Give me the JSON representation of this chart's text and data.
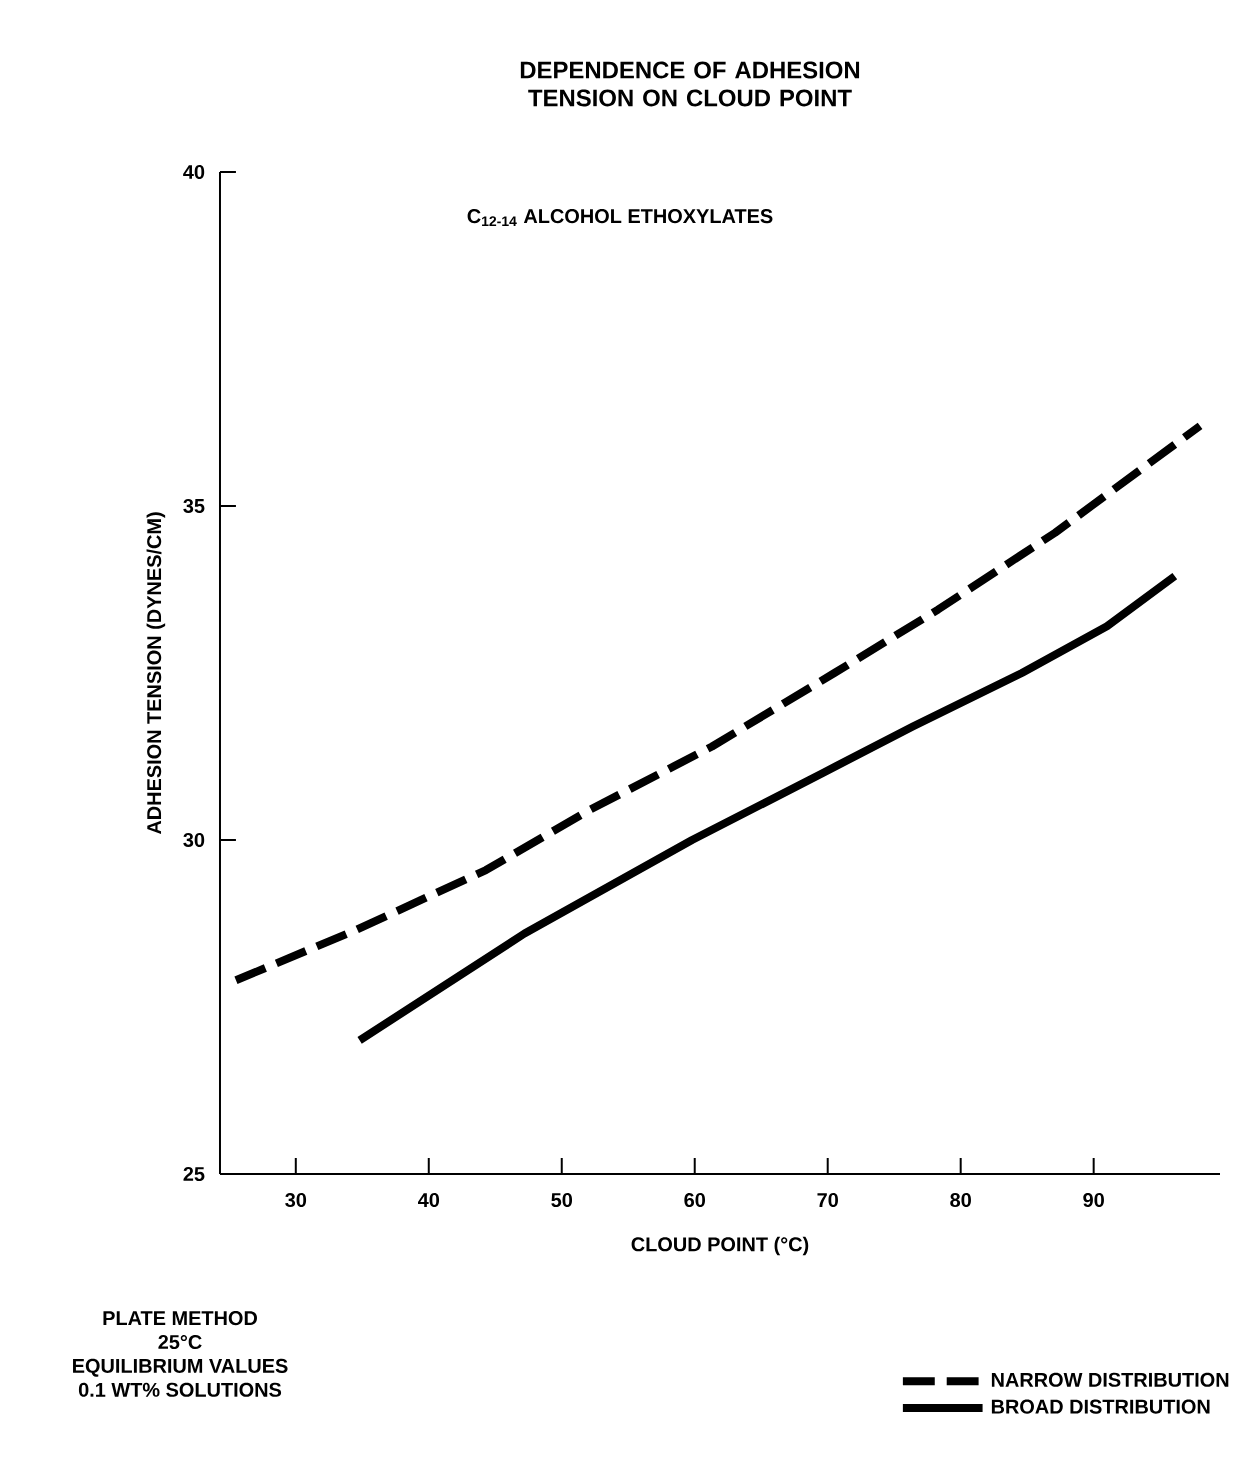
{
  "chart_data": {
    "type": "line",
    "title": "DEPENDENCE OF ADHESION TENSION ON CLOUD POINT",
    "xlabel": "CLOUD POINT (°C)",
    "ylabel": "ADHESION TENSION (DYNES/CM)",
    "annotations": [
      "C$_{12-14}$ ALCOHOL ETHOXYLATES",
      "PLATE METHOD",
      "25°C",
      "EQUILIBRIUM VALUES",
      "0.1 WT% SOLUTIONS"
    ],
    "xlim": [
      24.3,
      99.5
    ],
    "ylim": [
      25,
      40
    ],
    "xticks": [
      30,
      40,
      50,
      60,
      70,
      80,
      90
    ],
    "yticks": [
      25,
      30,
      35,
      40
    ],
    "legend": "bottom right",
    "series": [
      {
        "name": "NARROW DISTRIBUTION",
        "color": "#000000",
        "line_style": "dashed",
        "x": [
          25.5,
          34.5,
          44.3,
          52.1,
          61.3,
          70.5,
          78.3,
          87.1,
          98.0
        ],
        "values": [
          27.9,
          28.65,
          29.55,
          30.45,
          31.4,
          32.5,
          33.45,
          34.6,
          36.2
        ]
      },
      {
        "name": "BROAD DISTRIBUTION",
        "color": "#000000",
        "line_style": "solid",
        "x": [
          34.8,
          47.2,
          59.8,
          69.6,
          76.4,
          84.6,
          91.0,
          96.1
        ],
        "values": [
          27.0,
          28.6,
          30.0,
          31.0,
          31.7,
          32.5,
          33.2,
          33.95
        ]
      }
    ]
  }
}
